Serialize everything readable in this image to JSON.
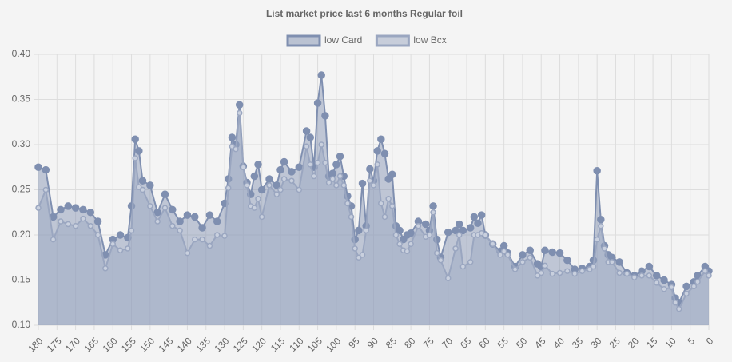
{
  "chart_data": {
    "type": "line",
    "title": "List market price last 6 months Regular foil",
    "x": [
      180,
      178,
      176,
      174,
      172,
      170,
      168,
      166,
      164,
      162,
      160,
      158,
      156,
      155,
      154,
      153,
      152,
      150,
      148,
      146,
      144,
      142,
      140,
      138,
      136,
      134,
      132,
      130,
      129,
      128,
      127,
      126,
      125,
      124,
      123,
      122,
      121,
      120,
      118,
      116,
      115,
      114,
      112,
      110,
      108,
      107,
      106,
      105,
      104,
      103,
      102,
      101,
      100,
      99,
      98,
      97,
      96,
      95,
      94,
      93,
      92,
      91,
      90,
      89,
      88,
      87,
      86,
      85,
      84,
      83,
      82,
      81,
      80,
      78,
      76,
      75,
      74,
      73,
      72,
      70,
      68,
      67,
      66,
      64,
      63,
      62,
      61,
      60,
      58,
      56,
      55,
      54,
      52,
      50,
      48,
      46,
      45,
      44,
      42,
      40,
      38,
      36,
      34,
      32,
      31,
      30,
      29,
      28,
      27,
      26,
      24,
      22,
      20,
      18,
      16,
      14,
      12,
      10,
      9,
      8,
      6,
      4,
      3,
      1,
      0
    ],
    "series": [
      {
        "name": "low Card",
        "color": "#7f8fb0",
        "values": [
          0.275,
          0.272,
          0.22,
          0.228,
          0.232,
          0.23,
          0.228,
          0.225,
          0.215,
          0.178,
          0.195,
          0.2,
          0.197,
          0.232,
          0.306,
          0.293,
          0.26,
          0.255,
          0.225,
          0.245,
          0.228,
          0.215,
          0.222,
          0.22,
          0.208,
          0.222,
          0.215,
          0.235,
          0.262,
          0.308,
          0.3,
          0.344,
          0.276,
          0.258,
          0.245,
          0.265,
          0.278,
          0.25,
          0.262,
          0.255,
          0.272,
          0.281,
          0.27,
          0.275,
          0.315,
          0.308,
          0.275,
          0.346,
          0.377,
          0.332,
          0.265,
          0.268,
          0.278,
          0.287,
          0.265,
          0.243,
          0.232,
          0.195,
          0.205,
          0.257,
          0.21,
          0.273,
          0.26,
          0.293,
          0.306,
          0.29,
          0.262,
          0.267,
          0.21,
          0.205,
          0.195,
          0.2,
          0.202,
          0.215,
          0.212,
          0.205,
          0.232,
          0.195,
          0.175,
          0.203,
          0.205,
          0.212,
          0.205,
          0.208,
          0.22,
          0.213,
          0.222,
          0.2,
          0.19,
          0.182,
          0.188,
          0.18,
          0.165,
          0.178,
          0.183,
          0.168,
          0.165,
          0.183,
          0.181,
          0.18,
          0.172,
          0.162,
          0.163,
          0.165,
          0.172,
          0.271,
          0.217,
          0.188,
          0.178,
          0.175,
          0.17,
          0.158,
          0.155,
          0.16,
          0.165,
          0.155,
          0.15,
          0.145,
          0.13,
          0.125,
          0.143,
          0.148,
          0.155,
          0.165,
          0.16
        ]
      },
      {
        "name": "low Bcx",
        "color": "#9aa6c0",
        "values": [
          0.23,
          0.25,
          0.195,
          0.215,
          0.212,
          0.21,
          0.218,
          0.21,
          0.2,
          0.163,
          0.19,
          0.183,
          0.185,
          0.205,
          0.285,
          0.253,
          0.25,
          0.232,
          0.215,
          0.23,
          0.21,
          0.205,
          0.18,
          0.195,
          0.195,
          0.188,
          0.2,
          0.199,
          0.252,
          0.298,
          0.295,
          0.335,
          0.275,
          0.255,
          0.232,
          0.23,
          0.24,
          0.22,
          0.255,
          0.245,
          0.25,
          0.262,
          0.26,
          0.25,
          0.298,
          0.278,
          0.265,
          0.28,
          0.3,
          0.28,
          0.258,
          0.262,
          0.255,
          0.265,
          0.255,
          0.235,
          0.22,
          0.185,
          0.175,
          0.178,
          0.205,
          0.26,
          0.255,
          0.278,
          0.235,
          0.22,
          0.24,
          0.232,
          0.2,
          0.19,
          0.183,
          0.182,
          0.19,
          0.21,
          0.198,
          0.2,
          0.225,
          0.18,
          0.172,
          0.152,
          0.185,
          0.2,
          0.165,
          0.17,
          0.2,
          0.2,
          0.202,
          0.2,
          0.19,
          0.178,
          0.182,
          0.178,
          0.162,
          0.17,
          0.175,
          0.155,
          0.158,
          0.166,
          0.157,
          0.158,
          0.16,
          0.157,
          0.16,
          0.162,
          0.165,
          0.195,
          0.21,
          0.185,
          0.17,
          0.17,
          0.158,
          0.157,
          0.153,
          0.155,
          0.155,
          0.147,
          0.14,
          0.142,
          0.125,
          0.118,
          0.135,
          0.143,
          0.148,
          0.16,
          0.155
        ]
      }
    ],
    "xlim": [
      180,
      0
    ],
    "xticks": [
      180,
      175,
      170,
      165,
      160,
      155,
      150,
      145,
      140,
      135,
      130,
      125,
      120,
      115,
      110,
      105,
      100,
      95,
      90,
      85,
      80,
      75,
      70,
      65,
      60,
      55,
      50,
      45,
      40,
      35,
      30,
      25,
      20,
      15,
      10,
      5,
      0
    ],
    "ylim": [
      0.1,
      0.4
    ],
    "yticks": [
      {
        "value": 0.1,
        "label": "0.10"
      },
      0.15,
      {
        "value": 0.2,
        "label": "0.20"
      },
      0.25,
      {
        "value": 0.3,
        "label": "0.30"
      },
      0.35,
      {
        "value": 0.4,
        "label": "0.40"
      }
    ],
    "grid": true
  }
}
